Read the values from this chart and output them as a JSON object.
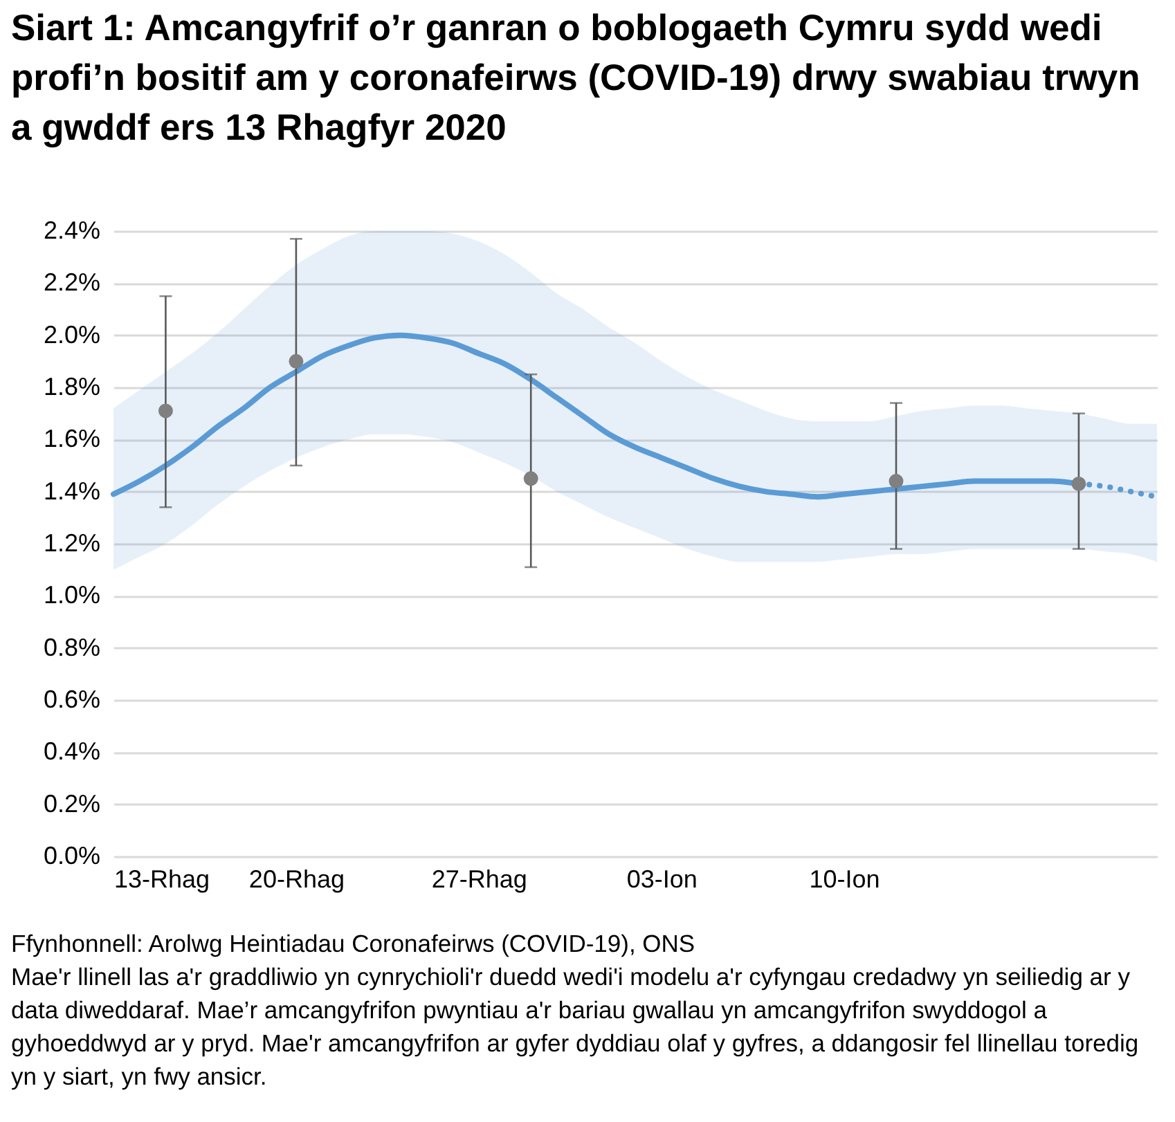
{
  "chart_data": {
    "type": "line",
    "title": "Siart 1: Amcangyfrif o’r ganran o boblogaeth Cymru sydd wedi profi’n bositif am y coronafeirws (COVID-19) drwy swabiau trwyn a gwddf ers 13 Rhagfyr 2020",
    "annotations": [
      "Ffynhonnell: Arolwg Heintiadau Coronafeirws (COVID-19), ONS",
      "Mae'r llinell las a'r graddliwio yn cynrychioli'r duedd wedi'i modelu a'r cyfyngau credadwy yn seiliedig ar y data diweddaraf. Mae’r amcangyfrifon pwyntiau a'r bariau gwallau yn amcangyfrifon swyddogol a gyhoeddwyd ar y pryd. Mae'r amcangyfrifon ar gyfer dyddiau olaf y gyfres, a ddangosir fel llinellau toredig yn y siart, yn fwy ansicr."
    ],
    "xlim": [
      "2020-12-13",
      "2021-01-22"
    ],
    "xticks": [
      {
        "value": "2020-12-13",
        "label": "13-Rhag"
      },
      {
        "value": "2020-12-20",
        "label": "20-Rhag"
      },
      {
        "value": "2020-12-27",
        "label": "27-Rhag"
      },
      {
        "value": "2021-01-03",
        "label": "03-Ion"
      },
      {
        "value": "2021-01-10",
        "label": "10-Ion"
      }
    ],
    "ylim": [
      0,
      2.4
    ],
    "yticks": [
      {
        "value": 0,
        "label": "0.0%"
      },
      {
        "value": 0.2,
        "label": "0.2%"
      },
      {
        "value": 0.4,
        "label": "0.4%"
      },
      {
        "value": 0.6,
        "label": "0.6%"
      },
      {
        "value": 0.8,
        "label": "0.8%"
      },
      {
        "value": 1.0,
        "label": "1.0%"
      },
      {
        "value": 1.2,
        "label": "1.2%"
      },
      {
        "value": 1.4,
        "label": "1.4%"
      },
      {
        "value": 1.6,
        "label": "1.6%"
      },
      {
        "value": 1.8,
        "label": "1.8%"
      },
      {
        "value": 2.0,
        "label": "2.0%"
      },
      {
        "value": 2.2,
        "label": "2.2%"
      },
      {
        "value": 2.4,
        "label": "2.4%"
      }
    ],
    "grid": "y",
    "series": [
      {
        "type": "line",
        "color": "#5b9bd5",
        "line_style": "solid",
        "x": [
          "2020-12-13",
          "2020-12-14",
          "2020-12-15",
          "2020-12-16",
          "2020-12-17",
          "2020-12-18",
          "2020-12-19",
          "2020-12-20",
          "2020-12-21",
          "2020-12-22",
          "2020-12-23",
          "2020-12-24",
          "2020-12-25",
          "2020-12-26",
          "2020-12-27",
          "2020-12-28",
          "2020-12-29",
          "2020-12-30",
          "2020-12-31",
          "2021-01-01",
          "2021-01-02",
          "2021-01-03",
          "2021-01-04",
          "2021-01-05",
          "2021-01-06",
          "2021-01-07",
          "2021-01-08",
          "2021-01-09",
          "2021-01-10",
          "2021-01-11",
          "2021-01-12",
          "2021-01-13",
          "2021-01-14",
          "2021-01-15",
          "2021-01-16",
          "2021-01-17",
          "2021-01-18",
          "2021-01-19",
          "2021-01-20",
          "2021-01-21",
          "2021-01-22"
        ],
        "values": [
          1.39,
          1.44,
          1.5,
          1.57,
          1.65,
          1.72,
          1.8,
          1.86,
          1.92,
          1.96,
          1.99,
          2.0,
          1.99,
          1.97,
          1.93,
          1.89,
          1.83,
          1.76,
          1.69,
          1.62,
          1.57,
          1.53,
          1.49,
          1.45,
          1.42,
          1.4,
          1.39,
          1.38,
          1.39,
          1.4,
          1.41,
          1.42,
          1.43,
          1.44,
          1.44,
          1.44,
          1.44,
          1.43,
          null,
          null,
          null
        ],
        "lower": [
          1.1,
          1.15,
          1.2,
          1.27,
          1.35,
          1.42,
          1.48,
          1.53,
          1.57,
          1.6,
          1.62,
          1.62,
          1.61,
          1.59,
          1.55,
          1.51,
          1.46,
          1.4,
          1.35,
          1.3,
          1.26,
          1.22,
          1.18,
          1.15,
          1.13,
          1.13,
          1.13,
          1.13,
          1.14,
          1.15,
          1.16,
          1.16,
          1.17,
          1.18,
          1.18,
          1.18,
          1.18,
          1.18,
          1.17,
          1.16,
          1.13
        ],
        "upper": [
          1.72,
          1.79,
          1.86,
          1.93,
          2.01,
          2.1,
          2.19,
          2.27,
          2.33,
          2.38,
          2.4,
          2.4,
          2.4,
          2.39,
          2.36,
          2.31,
          2.24,
          2.16,
          2.1,
          2.03,
          1.97,
          1.9,
          1.84,
          1.79,
          1.75,
          1.71,
          1.68,
          1.67,
          1.67,
          1.67,
          1.69,
          1.71,
          1.72,
          1.73,
          1.73,
          1.72,
          1.71,
          1.7,
          1.68,
          1.66,
          1.66
        ]
      },
      {
        "color": "#5b9bd5",
        "line_style": "dotted",
        "x": [
          "2021-01-19",
          "2021-01-20",
          "2021-01-21",
          "2021-01-22"
        ],
        "values": [
          1.43,
          1.42,
          1.4,
          1.38
        ]
      },
      {
        "type": "scatter",
        "color": "#808080",
        "marker": "circle",
        "x": [
          "2020-12-15",
          "2020-12-20",
          "2020-12-29",
          "2021-01-12",
          "2021-01-19"
        ],
        "values": [
          1.71,
          1.9,
          1.45,
          1.44,
          1.43
        ],
        "errors": [
          [
            1.34,
            2.15
          ],
          [
            1.5,
            2.37
          ],
          [
            1.11,
            1.85
          ],
          [
            1.18,
            1.74
          ],
          [
            1.18,
            1.7
          ]
        ]
      }
    ]
  }
}
